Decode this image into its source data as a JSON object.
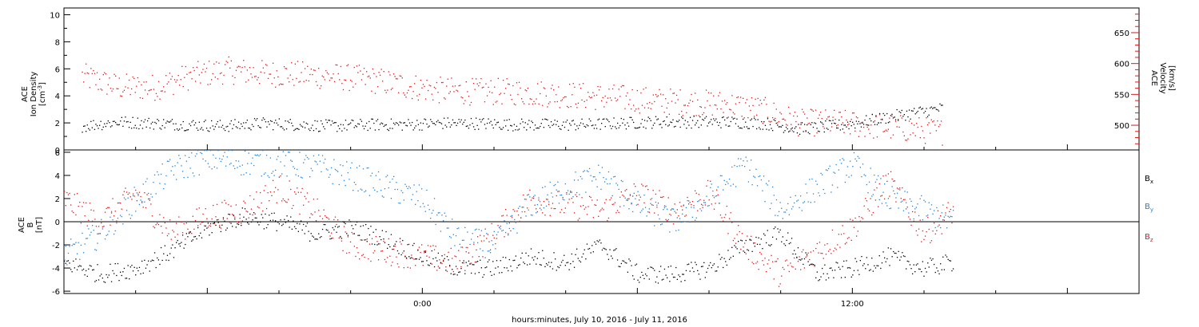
{
  "chart_data": [
    {
      "type": "scatter",
      "panel": "plasma",
      "left_axis": {
        "label_lines": [
          "ACE",
          "Ion Density"
        ],
        "unit_prefix": "[cm",
        "unit_sup": "-3",
        "unit_suffix": "]",
        "ylim": [
          0,
          10.5
        ],
        "ticks": [
          "0",
          "2",
          "4",
          "6",
          "8",
          "10"
        ],
        "color": "#000000"
      },
      "right_axis": {
        "label_lines": [
          "ACE",
          "Velocity",
          "[km/s]"
        ],
        "ylim": [
          460,
          690
        ],
        "ticks": [
          "500",
          "550",
          "600",
          "650"
        ],
        "color": "#e01818"
      },
      "series": [
        {
          "axis": "left",
          "color": "#000000",
          "values": [
            [
              -9.5,
              1.8
            ],
            [
              -8.5,
              2.1
            ],
            [
              -7.5,
              2.0
            ],
            [
              -6.5,
              1.9
            ],
            [
              -5.5,
              1.8
            ],
            [
              -4.5,
              2.0
            ],
            [
              -3.5,
              1.9
            ],
            [
              -2.5,
              1.8
            ],
            [
              -1.5,
              1.9
            ],
            [
              -0.5,
              1.9
            ],
            [
              0.5,
              2.0
            ],
            [
              1.5,
              2.0
            ],
            [
              2.5,
              1.9
            ],
            [
              3.5,
              1.9
            ],
            [
              4.5,
              1.9
            ],
            [
              5.5,
              2.0
            ],
            [
              6.5,
              2.1
            ],
            [
              7.5,
              2.1
            ],
            [
              8.5,
              2.1
            ],
            [
              9.5,
              2.0
            ],
            [
              10.5,
              1.6
            ],
            [
              11.5,
              1.8
            ],
            [
              12.5,
              2.2
            ],
            [
              13.5,
              2.7
            ],
            [
              14.5,
              3.1
            ]
          ]
        },
        {
          "axis": "right",
          "color": "#e01818",
          "values": [
            [
              -9.5,
              580
            ],
            [
              -8.5,
              563
            ],
            [
              -7.5,
              562
            ],
            [
              -6.5,
              580
            ],
            [
              -5.5,
              590
            ],
            [
              -4.5,
              585
            ],
            [
              -3.5,
              583
            ],
            [
              -2.5,
              580
            ],
            [
              -1.5,
              575
            ],
            [
              -0.5,
              565
            ],
            [
              0.5,
              557
            ],
            [
              1.5,
              555
            ],
            [
              2.5,
              555
            ],
            [
              3.5,
              552
            ],
            [
              4.5,
              548
            ],
            [
              5.5,
              545
            ],
            [
              6.5,
              540
            ],
            [
              7.5,
              538
            ],
            [
              8.5,
              535
            ],
            [
              9.5,
              525
            ],
            [
              10.5,
              505
            ],
            [
              11.5,
              505
            ],
            [
              12.5,
              500
            ],
            [
              13.5,
              495
            ],
            [
              14.5,
              490
            ]
          ]
        }
      ]
    },
    {
      "type": "scatter",
      "panel": "magnetic-field",
      "left_axis": {
        "label_lines": [
          "ACE",
          "B",
          "[nT]"
        ],
        "ylim": [
          -6.2,
          6.2
        ],
        "ticks": [
          "-6",
          "-4",
          "-2",
          "0",
          "2",
          "4",
          "6"
        ],
        "color": "#000000"
      },
      "zero_line": 0,
      "legend": {
        "placement": "right",
        "entries": [
          {
            "name": "B",
            "sub": "x",
            "color": "#000000"
          },
          {
            "name": "B",
            "sub": "y",
            "color": "#1e82dc"
          },
          {
            "name": "B",
            "sub": "z",
            "color": "#e01818"
          }
        ]
      },
      "series": [
        {
          "name": "Bx",
          "color": "#000000",
          "values": [
            [
              -10,
              -3.5
            ],
            [
              -9,
              -4.5
            ],
            [
              -8,
              -4.0
            ],
            [
              -7,
              -2.5
            ],
            [
              -6,
              -0.5
            ],
            [
              -5,
              0.5
            ],
            [
              -4,
              0.0
            ],
            [
              -3,
              -1.0
            ],
            [
              -2,
              -0.5
            ],
            [
              -1,
              -1.5
            ],
            [
              0,
              -3.0
            ],
            [
              1,
              -4.0
            ],
            [
              2,
              -4.0
            ],
            [
              3,
              -3.0
            ],
            [
              4,
              -3.5
            ],
            [
              5,
              -2.0
            ],
            [
              6,
              -4.5
            ],
            [
              7,
              -4.5
            ],
            [
              8,
              -4.0
            ],
            [
              9,
              -2.0
            ],
            [
              10,
              -1.0
            ],
            [
              11,
              -4.5
            ],
            [
              12,
              -4.0
            ],
            [
              13,
              -3.0
            ],
            [
              14,
              -4.0
            ],
            [
              14.8,
              -3.5
            ]
          ]
        },
        {
          "name": "By",
          "color": "#1e82dc",
          "values": [
            [
              -10,
              -3.0
            ],
            [
              -9,
              -1.0
            ],
            [
              -8,
              2.0
            ],
            [
              -7,
              4.5
            ],
            [
              -6,
              5.5
            ],
            [
              -5,
              5.2
            ],
            [
              -4,
              5.0
            ],
            [
              -3,
              4.8
            ],
            [
              -2,
              4.0
            ],
            [
              -1,
              3.0
            ],
            [
              0,
              2.0
            ],
            [
              1,
              -1.5
            ],
            [
              2,
              -2.0
            ],
            [
              3,
              1.5
            ],
            [
              4,
              3.0
            ],
            [
              5,
              4.0
            ],
            [
              6,
              1.5
            ],
            [
              7,
              0.0
            ],
            [
              8,
              2.0
            ],
            [
              9,
              5.0
            ],
            [
              10,
              1.0
            ],
            [
              11,
              3.0
            ],
            [
              12,
              5.0
            ],
            [
              13,
              2.0
            ],
            [
              14,
              1.0
            ],
            [
              14.8,
              0.0
            ]
          ]
        },
        {
          "name": "Bz",
          "color": "#e01818",
          "values": [
            [
              -10,
              2.0
            ],
            [
              -9,
              0.0
            ],
            [
              -8,
              2.5
            ],
            [
              -7,
              -1.0
            ],
            [
              -6,
              0.5
            ],
            [
              -5,
              1.0
            ],
            [
              -4,
              3.0
            ],
            [
              -3,
              1.0
            ],
            [
              -2,
              -2.0
            ],
            [
              -1,
              -2.5
            ],
            [
              0,
              -3.0
            ],
            [
              1,
              -3.5
            ],
            [
              2,
              -1.0
            ],
            [
              3,
              2.0
            ],
            [
              4,
              1.5
            ],
            [
              5,
              1.0
            ],
            [
              6,
              2.5
            ],
            [
              7,
              1.0
            ],
            [
              8,
              2.5
            ],
            [
              9,
              -2.0
            ],
            [
              10,
              -4.5
            ],
            [
              11,
              -2.5
            ],
            [
              12,
              -0.5
            ],
            [
              13,
              3.5
            ],
            [
              14,
              -1.0
            ],
            [
              14.8,
              1.0
            ]
          ]
        }
      ]
    }
  ],
  "x_axis": {
    "range_hours": [
      -10,
      20
    ],
    "tick_labels": [
      {
        "hour": 0,
        "label": "0:00"
      },
      {
        "hour": 12,
        "label": "12:00"
      }
    ],
    "title": "hours:minutes, July 10, 2016 - July 11, 2016"
  }
}
